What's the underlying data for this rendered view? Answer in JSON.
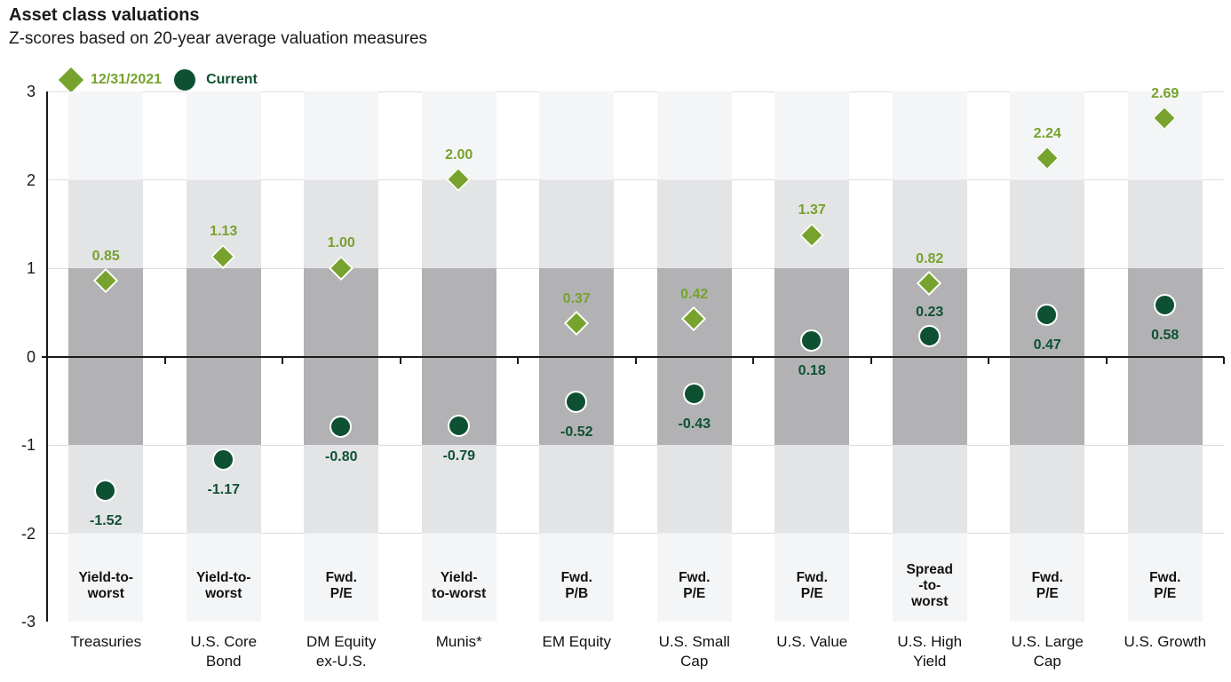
{
  "page": {
    "title": "Asset class valuations",
    "subtitle": "Z-scores based on 20-year average valuation measures"
  },
  "legend": {
    "items": [
      {
        "label": "12/31/2021",
        "marker": "diamond",
        "color": "#76A22D"
      },
      {
        "label": "Current",
        "marker": "circle",
        "color": "#0E5132"
      }
    ]
  },
  "colors": {
    "diamond_green": "#76A22D",
    "dark_green": "#0E5132",
    "band_outer": "#F4F5F6",
    "band_mid": "#E3E4E6",
    "band_inner": "#B2B2B4",
    "gridline": "#DCDDDF",
    "axis": "#1A1A1A"
  },
  "chart_data": {
    "type": "scatter",
    "title": "Asset class valuations",
    "subtitle": "Z-scores based on 20-year average valuation measures",
    "ylim": [
      -3,
      3
    ],
    "yticks": [
      3,
      2,
      1,
      0,
      -1,
      -2,
      -3
    ],
    "legend_position": "top-left",
    "background_bands": {
      "inner_range": [
        -1,
        1
      ],
      "mid_range_abs": [
        1,
        2
      ],
      "outer_range_abs": [
        2,
        3
      ],
      "note": "vertical shaded column per category; darkest between -1 and +1"
    },
    "categories": [
      "Treasuries",
      "U.S. Core Bond",
      "DM Equity ex-U.S.",
      "Munis*",
      "EM Equity",
      "U.S. Small Cap",
      "U.S. Value",
      "U.S. High Yield",
      "U.S. Large Cap",
      "U.S. Growth"
    ],
    "category_lines": [
      [
        "Treasuries"
      ],
      [
        "U.S. Core",
        "Bond"
      ],
      [
        "DM Equity",
        "ex-U.S."
      ],
      [
        "Munis*"
      ],
      [
        "EM Equity"
      ],
      [
        "U.S. Small",
        "Cap"
      ],
      [
        "U.S. Value"
      ],
      [
        "U.S. High",
        "Yield"
      ],
      [
        "U.S. Large",
        "Cap"
      ],
      [
        "U.S. Growth"
      ]
    ],
    "measures": [
      "Yield-to-worst",
      "Yield-to-worst",
      "Fwd. P/E",
      "Yield-to-worst",
      "Fwd. P/B",
      "Fwd. P/E",
      "Fwd. P/E",
      "Spread-to-worst",
      "Fwd. P/E",
      "Fwd. P/E"
    ],
    "measure_lines": [
      [
        "Yield-to-",
        "worst"
      ],
      [
        "Yield-to-",
        "worst"
      ],
      [
        "Fwd.",
        "P/E"
      ],
      [
        "Yield-",
        "to-worst"
      ],
      [
        "Fwd.",
        "P/B"
      ],
      [
        "Fwd.",
        "P/E"
      ],
      [
        "Fwd.",
        "P/E"
      ],
      [
        "Spread",
        "-to-",
        "worst"
      ],
      [
        "Fwd.",
        "P/E"
      ],
      [
        "Fwd.",
        "P/E"
      ]
    ],
    "series": [
      {
        "name": "12/31/2021",
        "marker": "diamond",
        "color": "#76A22D",
        "values": [
          0.85,
          1.13,
          1.0,
          2.0,
          0.37,
          0.42,
          1.37,
          0.82,
          2.24,
          2.69
        ]
      },
      {
        "name": "Current",
        "marker": "circle",
        "color": "#0E5132",
        "values": [
          -1.52,
          -1.17,
          -0.8,
          -0.79,
          -0.52,
          -0.43,
          0.18,
          0.23,
          0.47,
          0.58
        ]
      }
    ],
    "current_label_side": [
      "below",
      "below",
      "below",
      "below",
      "below",
      "below",
      "below",
      "above",
      "below",
      "below"
    ]
  }
}
